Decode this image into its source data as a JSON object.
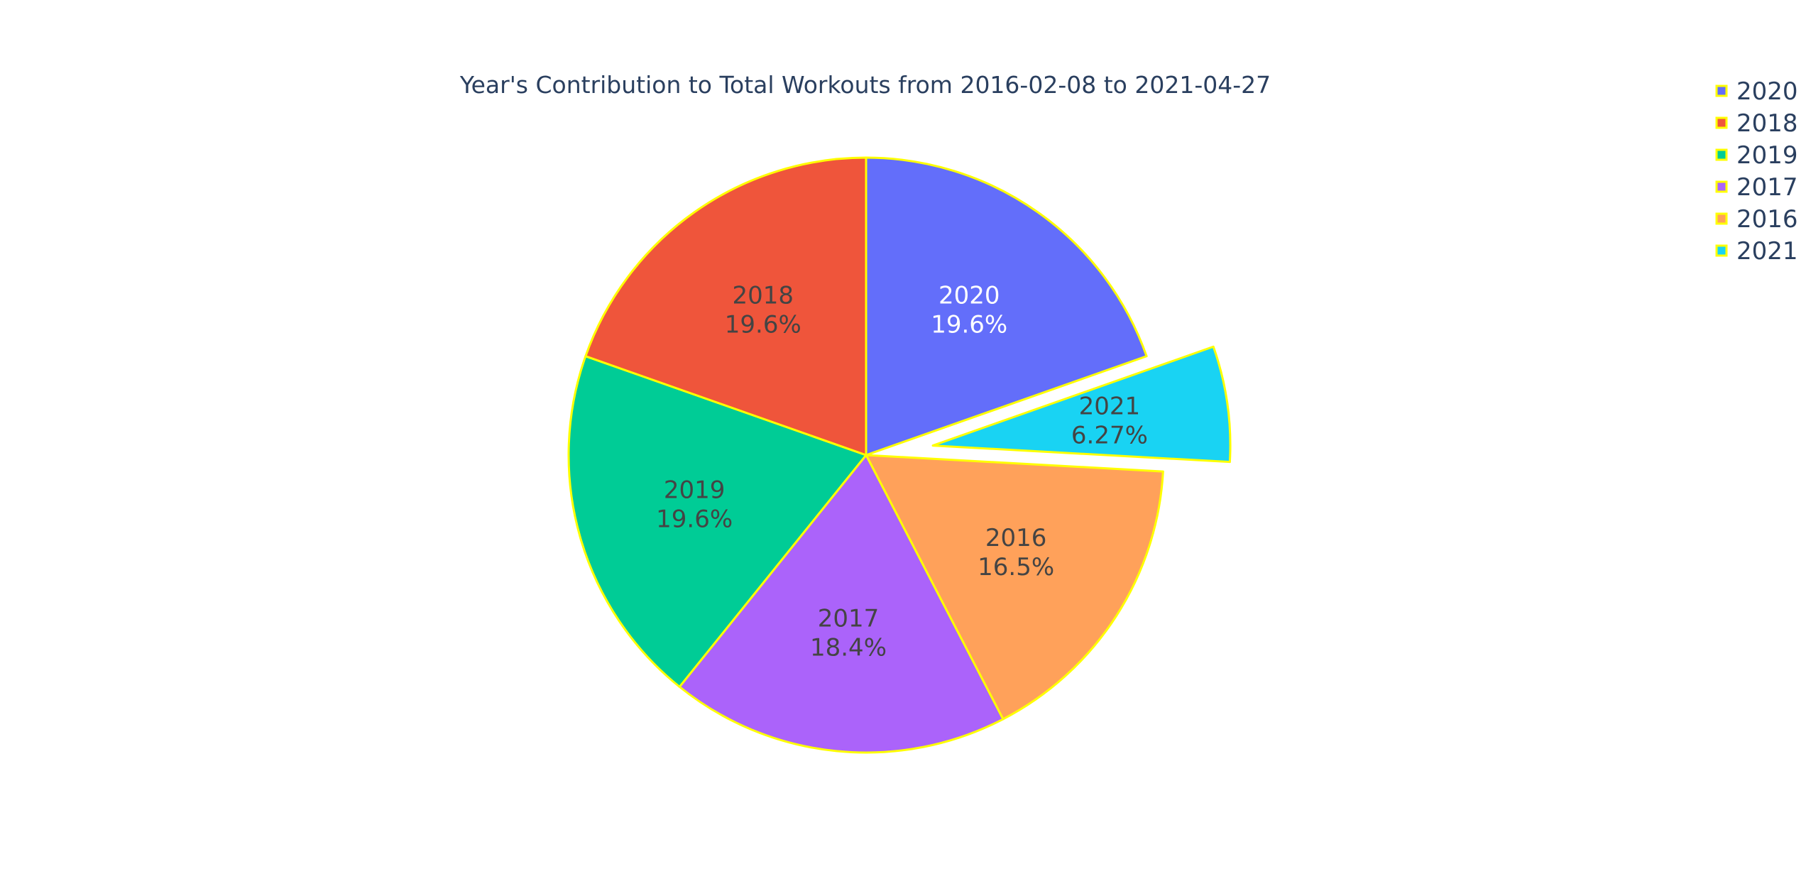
{
  "chart_data": {
    "type": "pie",
    "title": "Year's Contribution to Total Workouts from 2016-02-08 to 2021-04-27",
    "direction": "clockwise",
    "start": "12 o'clock",
    "slice_border_color": "#ffff00",
    "pulled_slice": "2021",
    "slices": [
      {
        "label": "2020",
        "percent": 19.6,
        "percent_text": "19.6%",
        "color": "#636efa",
        "text_color": "#ffffff"
      },
      {
        "label": "2021",
        "percent": 6.27,
        "percent_text": "6.27%",
        "color": "#19d3f3",
        "text_color": "#444444"
      },
      {
        "label": "2016",
        "percent": 16.5,
        "percent_text": "16.5%",
        "color": "#ffa15a",
        "text_color": "#444444"
      },
      {
        "label": "2017",
        "percent": 18.4,
        "percent_text": "18.4%",
        "color": "#ab63fa",
        "text_color": "#444444"
      },
      {
        "label": "2019",
        "percent": 19.6,
        "percent_text": "19.6%",
        "color": "#00cc96",
        "text_color": "#444444"
      },
      {
        "label": "2018",
        "percent": 19.6,
        "percent_text": "19.6%",
        "color": "#ef553b",
        "text_color": "#444444"
      }
    ],
    "legend": {
      "placement": "top-right",
      "items": [
        {
          "label": "2020",
          "color": "#636efa"
        },
        {
          "label": "2018",
          "color": "#ef553b"
        },
        {
          "label": "2019",
          "color": "#00cc96"
        },
        {
          "label": "2017",
          "color": "#ab63fa"
        },
        {
          "label": "2016",
          "color": "#ffa15a"
        },
        {
          "label": "2021",
          "color": "#19d3f3"
        }
      ]
    }
  }
}
